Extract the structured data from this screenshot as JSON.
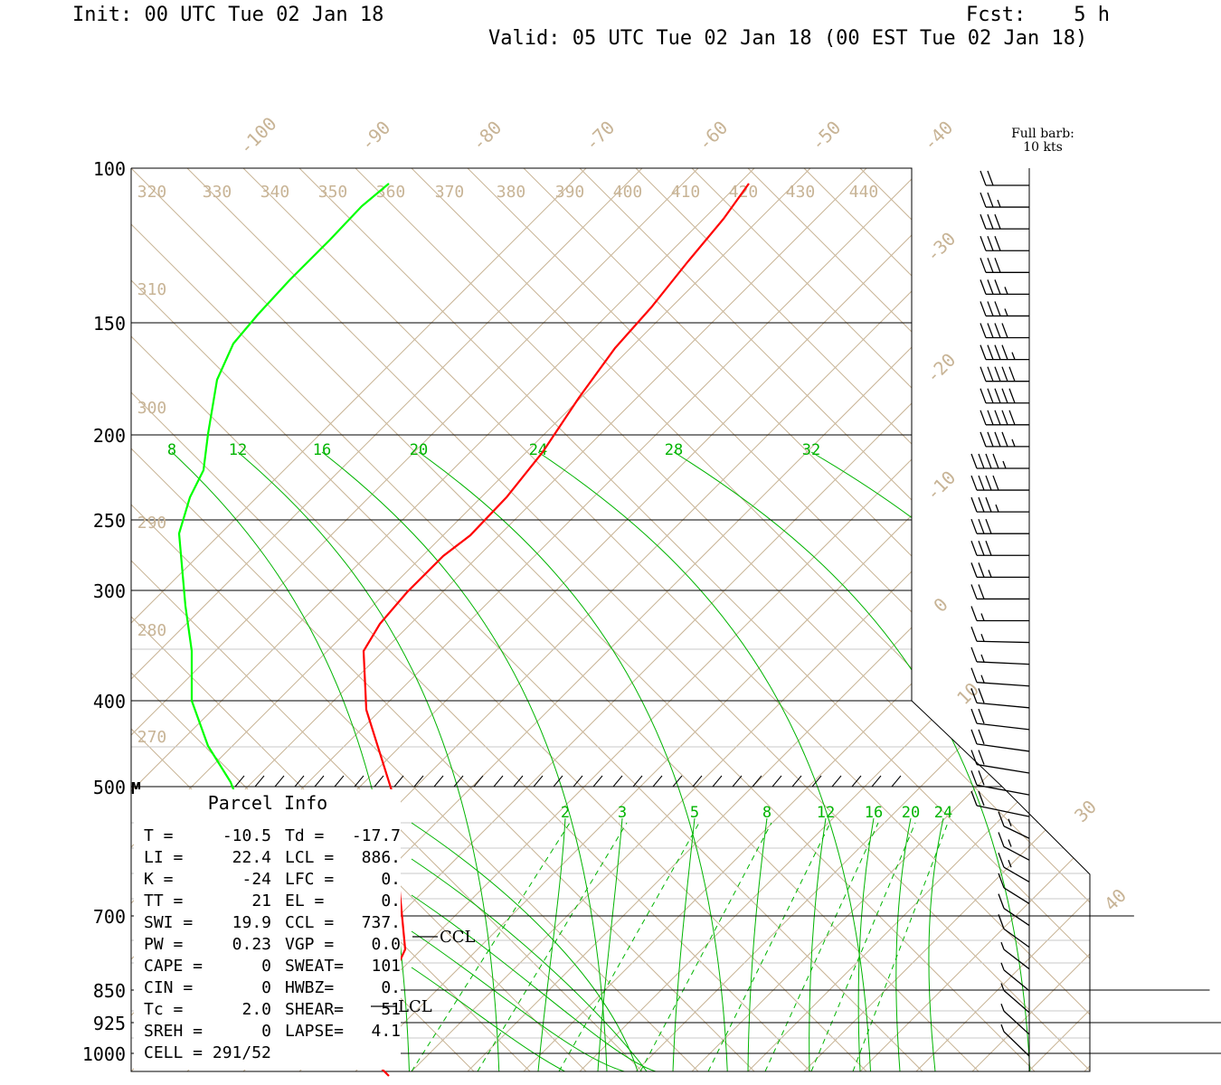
{
  "header": {
    "init": "Init: 00 UTC Tue 02 Jan 18",
    "fcst": "Fcst:    5 h",
    "valid": "Valid: 05 UTC Tue 02 Jan 18 (00 EST Tue 02 Jan 18)"
  },
  "wind_legend": {
    "line1": "Full barb:",
    "line2": "10 kts"
  },
  "colors": {
    "temperature": "#ff0000",
    "dewpoint": "#00ff00",
    "isotherm": "#c8b496",
    "mixing_ratio": "#00b400",
    "frame": "#000000"
  },
  "chart_data": {
    "type": "line",
    "title": "",
    "pressure_levels": [
      "100",
      "150",
      "200",
      "250",
      "300",
      "400",
      "500",
      "700",
      "850",
      "925",
      "1000"
    ],
    "marker_500": "M",
    "isotherm_labels": [
      "-100",
      "-90",
      "-80",
      "-70",
      "-60",
      "-50",
      "-40",
      "-30",
      "-20",
      "-10",
      "0",
      "10",
      "30",
      "40"
    ],
    "theta_labels": [
      "320",
      "330",
      "340",
      "350",
      "360",
      "370",
      "380",
      "390",
      "400",
      "410",
      "420",
      "430",
      "440",
      "310",
      "300",
      "290",
      "280",
      "270"
    ],
    "mixing_ratio_upper_labels": [
      "8",
      "12",
      "16",
      "20",
      "24",
      "28",
      "32"
    ],
    "mixing_ratio_lower_labels": [
      "2",
      "3",
      "5",
      "8",
      "12",
      "16",
      "20",
      "24"
    ],
    "series": [
      {
        "name": "T",
        "color": "#ff0000",
        "points": [
          [
            430,
            1190
          ],
          [
            405,
            1165
          ],
          [
            420,
            1110
          ],
          [
            448,
            1050
          ],
          [
            440,
            965
          ],
          [
            438,
            890
          ],
          [
            405,
            785
          ],
          [
            402,
            720
          ],
          [
            420,
            690
          ],
          [
            450,
            655
          ],
          [
            490,
            615
          ],
          [
            520,
            592
          ],
          [
            560,
            550
          ],
          [
            600,
            500
          ],
          [
            640,
            440
          ],
          [
            680,
            385
          ],
          [
            720,
            340
          ],
          [
            760,
            290
          ],
          [
            800,
            242
          ],
          [
            828,
            203
          ]
        ]
      },
      {
        "name": "Td",
        "color": "#00ff00",
        "points": [
          [
            348,
            1178
          ],
          [
            340,
            1150
          ],
          [
            322,
            1128
          ],
          [
            300,
            1080
          ],
          [
            310,
            1040
          ],
          [
            295,
            1000
          ],
          [
            280,
            930
          ],
          [
            255,
            865
          ],
          [
            230,
            825
          ],
          [
            212,
            775
          ],
          [
            212,
            720
          ],
          [
            205,
            670
          ],
          [
            198,
            590
          ],
          [
            210,
            550
          ],
          [
            225,
            520
          ],
          [
            230,
            480
          ],
          [
            240,
            420
          ],
          [
            258,
            380
          ],
          [
            285,
            348
          ],
          [
            320,
            310
          ],
          [
            365,
            265
          ],
          [
            400,
            228
          ],
          [
            430,
            203
          ]
        ]
      }
    ],
    "wind_barbs_kts": [
      20,
      25,
      30,
      30,
      30,
      35,
      35,
      40,
      45,
      50,
      50,
      50,
      45,
      45,
      40,
      35,
      30,
      30,
      25,
      20,
      15,
      15,
      15,
      15,
      20,
      20,
      20,
      20,
      20,
      20,
      15,
      15,
      15,
      10,
      10,
      10,
      5,
      5,
      5,
      5,
      5
    ]
  },
  "parcel_info": {
    "title": "Parcel Info",
    "rows": [
      {
        "k1": "T  =",
        "v1": "-10.5",
        "k2": "Td =",
        "v2": "-17.7"
      },
      {
        "k1": "LI =",
        "v1": "22.4",
        "k2": "LCL =",
        "v2": "886."
      },
      {
        "k1": "K  =",
        "v1": "-24",
        "k2": "LFC =",
        "v2": "0."
      },
      {
        "k1": "TT =",
        "v1": "21",
        "k2": "EL  =",
        "v2": "0."
      },
      {
        "k1": "SWI =",
        "v1": "19.9",
        "k2": "CCL =",
        "v2": "737."
      },
      {
        "k1": "PW =",
        "v1": "0.23",
        "k2": "VGP =",
        "v2": "0.0"
      },
      {
        "k1": "CAPE =",
        "v1": "0",
        "k2": "SWEAT=",
        "v2": "101"
      },
      {
        "k1": "CIN =",
        "v1": "0",
        "k2": "HWBZ=",
        "v2": "0."
      },
      {
        "k1": "Tc =",
        "v1": "2.0",
        "k2": "SHEAR=",
        "v2": "51"
      },
      {
        "k1": "SREH =",
        "v1": "0",
        "k2": "LAPSE=",
        "v2": "4.1"
      }
    ],
    "cell": "CELL = 291/52",
    "ccl_label": "CCL",
    "lcl_label": "LCL"
  }
}
